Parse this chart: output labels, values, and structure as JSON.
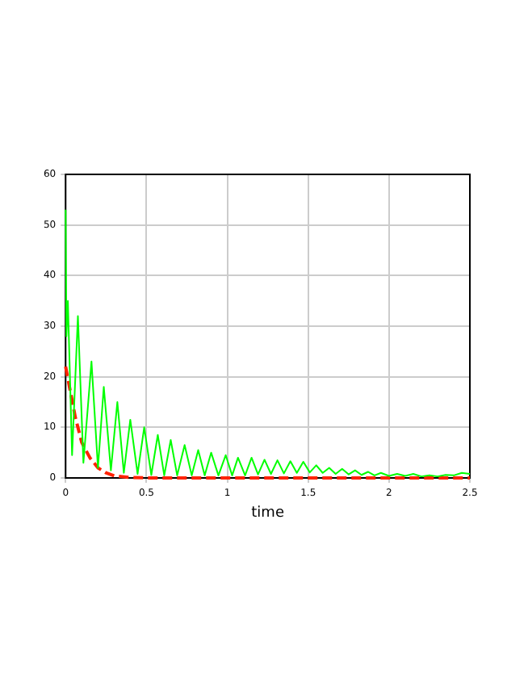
{
  "chart_data": {
    "type": "line",
    "xlabel": "time",
    "xlim": [
      0,
      2.5
    ],
    "xticks": [
      0,
      0.5,
      1,
      1.5,
      2,
      2.5
    ],
    "ylim": [
      0,
      60
    ],
    "yticks": [
      0,
      10,
      20,
      30,
      40,
      50,
      60
    ],
    "grid": true,
    "legend": false,
    "marker": "none",
    "series": [
      {
        "color": "#00ff00",
        "line_style": "solid",
        "x": [
          0,
          0.005,
          0.014,
          0.04,
          0.076,
          0.11,
          0.16,
          0.2,
          0.236,
          0.28,
          0.32,
          0.36,
          0.4,
          0.445,
          0.486,
          0.53,
          0.57,
          0.61,
          0.65,
          0.69,
          0.736,
          0.78,
          0.82,
          0.86,
          0.9,
          0.945,
          0.99,
          1.03,
          1.066,
          1.11,
          1.15,
          1.19,
          1.23,
          1.27,
          1.31,
          1.35,
          1.39,
          1.43,
          1.47,
          1.51,
          1.55,
          1.59,
          1.63,
          1.67,
          1.71,
          1.75,
          1.79,
          1.83,
          1.87,
          1.91,
          1.95,
          2,
          2.05,
          2.1,
          2.15,
          2.2,
          2.25,
          2.3,
          2.35,
          2.4,
          2.45,
          2.5
        ],
        "values": [
          53,
          28,
          35,
          4.5,
          32,
          3,
          23,
          2,
          18,
          1.5,
          15,
          1,
          11.5,
          0.8,
          10,
          0.6,
          8.5,
          0.5,
          7.5,
          0.5,
          6.5,
          0.5,
          5.5,
          0.5,
          5,
          0.5,
          4.5,
          0.5,
          4,
          0.5,
          4,
          0.7,
          3.6,
          0.8,
          3.5,
          0.9,
          3.3,
          1,
          3.2,
          1.1,
          2.5,
          1,
          2,
          0.8,
          1.8,
          0.7,
          1.5,
          0.6,
          1.2,
          0.5,
          1,
          0.4,
          0.8,
          0.4,
          0.8,
          0.3,
          0.5,
          0.3,
          0.6,
          0.5,
          1,
          0.8
        ]
      },
      {
        "color": "#ff2200",
        "line_style": "dashed",
        "x": [
          0,
          0.03,
          0.06,
          0.1,
          0.15,
          0.2,
          0.25,
          0.3,
          0.4,
          0.5,
          1,
          1.5,
          2,
          2.5
        ],
        "values": [
          22,
          17,
          12,
          7,
          4,
          2,
          1,
          0.4,
          0.1,
          0,
          0,
          0,
          0,
          0
        ]
      }
    ]
  }
}
